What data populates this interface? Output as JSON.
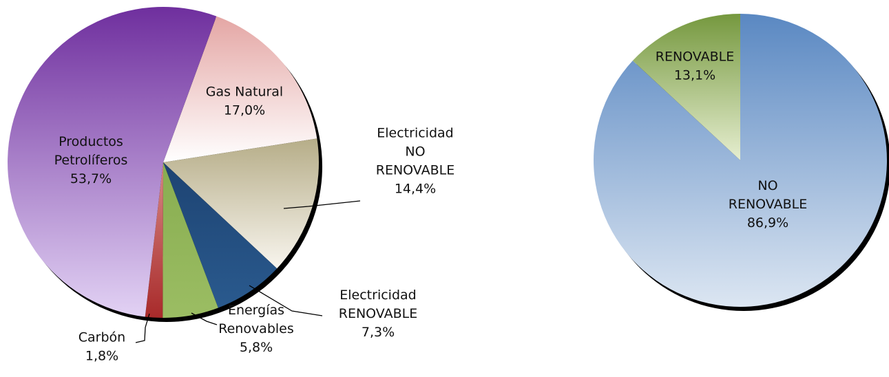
{
  "chart_data": [
    {
      "type": "pie",
      "slices": [
        {
          "label_lines": [
            "Gas Natural",
            "17,0%"
          ],
          "name": "Gas Natural",
          "value": 17.0,
          "value_label": "17,0%"
        },
        {
          "label_lines": [
            "Electricidad",
            "NO",
            "RENOVABLE",
            "14,4%"
          ],
          "name": "Electricidad NO RENOVABLE",
          "value": 14.4,
          "value_label": "14,4%"
        },
        {
          "label_lines": [
            "Electricidad",
            "RENOVABLE",
            "7,3%"
          ],
          "name": "Electricidad RENOVABLE",
          "value": 7.3,
          "value_label": "7,3%"
        },
        {
          "label_lines": [
            "Energías",
            "Renovables",
            "5,8%"
          ],
          "name": "Energías Renovables",
          "value": 5.8,
          "value_label": "5,8%"
        },
        {
          "label_lines": [
            "Carbón",
            "1,8%"
          ],
          "name": "Carbón",
          "value": 1.8,
          "value_label": "1,8%"
        },
        {
          "label_lines": [
            "Productos",
            "Petrolíferos",
            "53,7%"
          ],
          "name": "Productos Petrolíferos",
          "value": 53.7,
          "value_label": "53,7%"
        }
      ],
      "colors": {
        "Gas Natural": [
          "#e4a6a4",
          "#ffffff"
        ],
        "Electricidad NO RENOVABLE": [
          "#b6ad88",
          "#f8f5ee"
        ],
        "Electricidad RENOVABLE": [
          "#1d4372",
          "#2a5a8e"
        ],
        "Energías Renovables": [
          "#88ad50",
          "#9bbd63"
        ],
        "Carbón": [
          "#d88a86",
          "#a82a2a"
        ],
        "Productos Petrolíferos": [
          "#6f2f9e",
          "#e2d2f4"
        ]
      }
    },
    {
      "type": "pie",
      "slices": [
        {
          "label_lines": [
            "NO",
            "RENOVABLE",
            "86,9%"
          ],
          "name": "NO RENOVABLE",
          "value": 86.9,
          "value_label": "86,9%"
        },
        {
          "label_lines": [
            "RENOVABLE",
            "13,1%"
          ],
          "name": "RENOVABLE",
          "value": 13.1,
          "value_label": "13,1%"
        }
      ],
      "colors": {
        "NO RENOVABLE": [
          "#5a88c2",
          "#dce6f2"
        ],
        "RENOVABLE": [
          "#75983e",
          "#e6eed0"
        ]
      }
    }
  ]
}
